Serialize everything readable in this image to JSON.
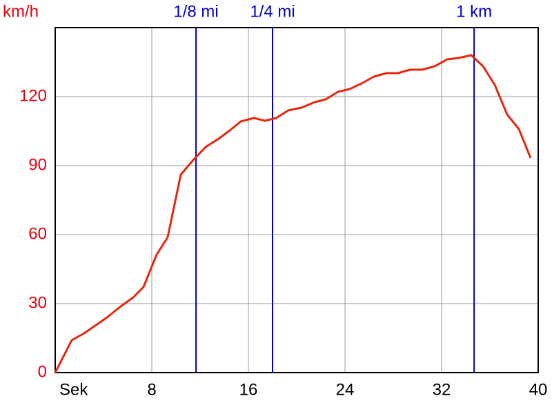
{
  "chart_data": {
    "type": "line",
    "y_label": "km/h",
    "x_label": "Sek",
    "x": [
      0,
      1.37,
      2.4,
      4.29,
      5.43,
      6.46,
      7.31,
      8.4,
      9.31,
      10.4,
      11.43,
      12.46,
      13.54,
      14.46,
      15.37,
      16.46,
      17.37,
      18.29,
      19.31,
      20.4,
      21.49,
      22.4,
      23.43,
      24.4,
      25.37,
      26.4,
      27.43,
      28.4,
      29.37,
      30.4,
      31.43,
      32.46,
      33.43,
      34.46,
      35.43,
      36.4,
      37.43,
      38.4,
      39.37
    ],
    "series": [
      {
        "color": "#e8260f",
        "values": [
          0,
          14.1,
          17.1,
          24,
          28.8,
          32.7,
          37.2,
          51.3,
          58.8,
          86.1,
          92.4,
          98.1,
          101.7,
          105.3,
          109.2,
          110.7,
          109.5,
          110.7,
          114,
          115.2,
          117.6,
          118.8,
          122.1,
          123.3,
          125.7,
          128.7,
          130.2,
          130.2,
          131.7,
          131.7,
          133.2,
          136.2,
          136.8,
          138,
          133.2,
          125.1,
          112.2,
          105.9,
          93.3
        ]
      }
    ],
    "markers": [
      {
        "label": "1/8 mi",
        "x": 11.66
      },
      {
        "label": "1/4 mi",
        "x": 18
      },
      {
        "label": "1 km",
        "x": 34.69
      }
    ],
    "marker_color": "#0000cc",
    "axis_color": "#e8000b",
    "xlim": [
      0,
      40
    ],
    "xticks": [
      8,
      16,
      24,
      32,
      40
    ],
    "ylim": [
      0,
      150
    ],
    "yticks": [
      0,
      30,
      60,
      90,
      120
    ],
    "grid": true
  }
}
